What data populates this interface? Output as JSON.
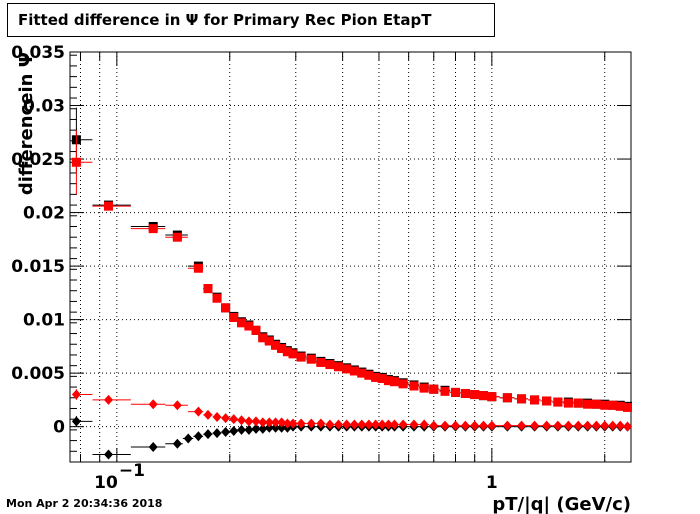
{
  "header": {
    "title": "Fitted difference in  Ψ  for Primary Rec Pion EtapT"
  },
  "footer": {
    "timestamp": "Mon Apr  2 20:34:36 2018"
  },
  "chart_data": {
    "type": "scatter",
    "title": "Fitted difference in  Ψ  for Primary Rec Pion EtapT",
    "xlabel": "pT/|q| (GeV/c)",
    "ylabel": "differencein  Ψ",
    "xscale": "log",
    "xlim": [
      0.075,
      2.35
    ],
    "ylim": [
      -0.0033,
      0.035
    ],
    "grid": true,
    "yticks": [
      0,
      0.005,
      0.01,
      0.015,
      0.02,
      0.025,
      0.03,
      0.035
    ],
    "ytick_labels": [
      "0",
      "0.005",
      "0.01",
      "0.015",
      "0.02",
      "0.025",
      "0.03",
      "0.035"
    ],
    "xtick_labels": [
      {
        "value": 0.1,
        "base": "10",
        "exp": "−1"
      },
      {
        "value": 1,
        "base": "1",
        "exp": ""
      }
    ],
    "colors": {
      "series_black": "#000000",
      "series_red": "#ff0000",
      "grid": "#000000"
    },
    "series": [
      {
        "marker": "square",
        "color": "#000000",
        "x": [
          0.078,
          0.095,
          0.125,
          0.145,
          0.165,
          0.175,
          0.185,
          0.195,
          0.205,
          0.215,
          0.225,
          0.235,
          0.245,
          0.255,
          0.265,
          0.275,
          0.285,
          0.295,
          0.31,
          0.33,
          0.35,
          0.37,
          0.39,
          0.41,
          0.43,
          0.45,
          0.47,
          0.49,
          0.51,
          0.53,
          0.55,
          0.58,
          0.62,
          0.66,
          0.7,
          0.75,
          0.8,
          0.85,
          0.9,
          0.95,
          1.0,
          1.1,
          1.2,
          1.3,
          1.4,
          1.5,
          1.6,
          1.7,
          1.8,
          1.9,
          2.0,
          2.1,
          2.2,
          2.3
        ],
        "y": [
          0.0268,
          0.0207,
          0.0187,
          0.0179,
          0.015,
          0.0129,
          0.0121,
          0.0111,
          0.0103,
          0.0098,
          0.0095,
          0.009,
          0.0084,
          0.0081,
          0.0077,
          0.0074,
          0.0071,
          0.0069,
          0.0066,
          0.0064,
          0.0061,
          0.0059,
          0.0057,
          0.0055,
          0.0053,
          0.0051,
          0.0049,
          0.0047,
          0.0046,
          0.0044,
          0.0043,
          0.0041,
          0.0039,
          0.0037,
          0.0035,
          0.0034,
          0.0032,
          0.0031,
          0.003,
          0.0029,
          0.0028,
          0.0027,
          0.0026,
          0.0025,
          0.0024,
          0.0023,
          0.0023,
          0.0022,
          0.0022,
          0.0021,
          0.0021,
          0.002,
          0.002,
          0.0019
        ]
      },
      {
        "marker": "square",
        "color": "#ff0000",
        "x": [
          0.078,
          0.095,
          0.125,
          0.145,
          0.165,
          0.175,
          0.185,
          0.195,
          0.205,
          0.215,
          0.225,
          0.235,
          0.245,
          0.255,
          0.265,
          0.275,
          0.285,
          0.295,
          0.31,
          0.33,
          0.35,
          0.37,
          0.39,
          0.41,
          0.43,
          0.45,
          0.47,
          0.49,
          0.51,
          0.53,
          0.55,
          0.58,
          0.62,
          0.66,
          0.7,
          0.75,
          0.8,
          0.85,
          0.9,
          0.95,
          1.0,
          1.1,
          1.2,
          1.3,
          1.4,
          1.5,
          1.6,
          1.7,
          1.8,
          1.9,
          2.0,
          2.1,
          2.2,
          2.3
        ],
        "y": [
          0.0247,
          0.0206,
          0.0185,
          0.0177,
          0.0148,
          0.0129,
          0.012,
          0.0111,
          0.0102,
          0.0097,
          0.0094,
          0.009,
          0.0083,
          0.008,
          0.0076,
          0.0073,
          0.007,
          0.0068,
          0.0065,
          0.0063,
          0.006,
          0.0058,
          0.0056,
          0.0054,
          0.0052,
          0.005,
          0.0048,
          0.0046,
          0.0045,
          0.0043,
          0.0042,
          0.004,
          0.0038,
          0.0036,
          0.0035,
          0.0033,
          0.0032,
          0.0031,
          0.003,
          0.0029,
          0.0028,
          0.0027,
          0.0026,
          0.0025,
          0.0024,
          0.0023,
          0.0022,
          0.0022,
          0.0021,
          0.0021,
          0.002,
          0.002,
          0.0019,
          0.0018
        ]
      },
      {
        "marker": "diamond",
        "color": "#000000",
        "x": [
          0.078,
          0.095,
          0.125,
          0.145,
          0.155,
          0.165,
          0.175,
          0.185,
          0.195,
          0.205,
          0.215,
          0.225,
          0.235,
          0.245,
          0.255,
          0.265,
          0.275,
          0.285,
          0.295,
          0.31,
          0.33,
          0.35,
          0.37,
          0.39,
          0.41,
          0.43,
          0.45,
          0.47,
          0.49,
          0.51,
          0.53,
          0.55,
          0.58,
          0.62,
          0.66,
          0.7,
          0.75,
          0.8,
          0.85,
          0.9,
          0.95,
          1.0,
          1.1,
          1.2,
          1.3,
          1.4,
          1.5,
          1.6,
          1.7,
          1.8,
          1.9,
          2.0,
          2.1,
          2.2,
          2.3
        ],
        "y": [
          0.0005,
          -0.0026,
          -0.0019,
          -0.0016,
          -0.0011,
          -0.0009,
          -0.0007,
          -0.0006,
          -0.0005,
          -0.0004,
          -0.0003,
          -0.0003,
          -0.0002,
          -0.0002,
          -0.0001,
          -0.0001,
          -0.0001,
          -0.0001,
          0.0,
          0.0,
          0.0,
          0.0,
          0.0,
          0.0,
          0.0,
          0.0,
          0.0,
          0.0,
          0.0,
          0.0,
          0.0,
          0.0,
          0.0,
          0.0,
          0.0,
          0.0,
          0.0,
          0.0,
          0.0,
          0.0,
          0.0,
          0.0,
          0.0,
          0.0,
          0.0,
          0.0,
          0.0,
          0.0,
          0.0,
          0.0,
          0.0,
          0.0,
          0.0,
          0.0,
          0.0
        ]
      },
      {
        "marker": "diamond",
        "color": "#ff0000",
        "x": [
          0.078,
          0.095,
          0.125,
          0.145,
          0.165,
          0.175,
          0.185,
          0.195,
          0.205,
          0.215,
          0.225,
          0.235,
          0.245,
          0.255,
          0.265,
          0.275,
          0.285,
          0.295,
          0.31,
          0.33,
          0.35,
          0.37,
          0.39,
          0.41,
          0.43,
          0.45,
          0.47,
          0.49,
          0.51,
          0.53,
          0.55,
          0.58,
          0.62,
          0.66,
          0.7,
          0.75,
          0.8,
          0.85,
          0.9,
          0.95,
          1.0,
          1.1,
          1.2,
          1.3,
          1.4,
          1.5,
          1.6,
          1.7,
          1.8,
          1.9,
          2.0,
          2.1,
          2.2,
          2.3
        ],
        "y": [
          0.003,
          0.0025,
          0.0021,
          0.002,
          0.0014,
          0.0011,
          0.0009,
          0.0008,
          0.0007,
          0.0006,
          0.0005,
          0.0005,
          0.0004,
          0.0004,
          0.0004,
          0.0004,
          0.0003,
          0.0003,
          0.0003,
          0.0003,
          0.0003,
          0.0002,
          0.0002,
          0.0002,
          0.0002,
          0.0002,
          0.0002,
          0.0002,
          0.0002,
          0.0002,
          0.0002,
          0.0002,
          0.0002,
          0.0002,
          0.0001,
          0.0001,
          0.0001,
          0.0001,
          0.0001,
          0.0001,
          0.0001,
          0.0001,
          0.0001,
          0.0001,
          0.0001,
          0.0001,
          0.0001,
          0.0001,
          0.0001,
          0.0001,
          0.0001,
          0.0001,
          0.0001,
          0.0
        ]
      }
    ]
  }
}
